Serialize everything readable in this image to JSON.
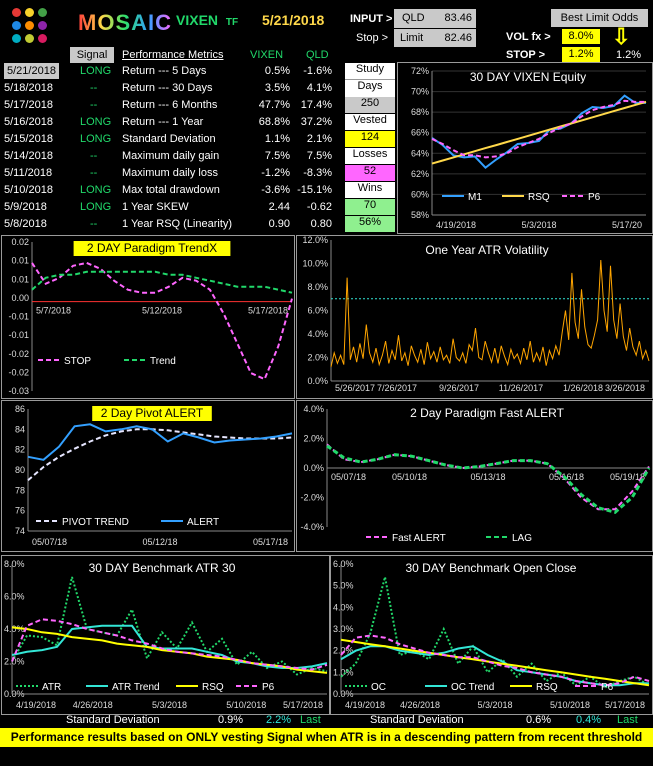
{
  "header": {
    "brand": "MOSAIC",
    "ticker": "VIXEN",
    "ticker_suffix": "TF",
    "date": "5/21/2018",
    "input_label": "INPUT >",
    "input_symbol": "QLD",
    "input_value": "83.46",
    "stop_label": "Stop >",
    "limit_label": "Limit",
    "limit_value": "82.46",
    "best_limit_odds": "Best Limit Odds",
    "vol_fx_label": "VOL fx >",
    "vol_fx_value": "8.0%",
    "stop2_label": "STOP  >",
    "stop2_value": "1.2%",
    "stop2_right": "1.2%",
    "arrow": "⇩"
  },
  "table": {
    "headers": {
      "signal": "Signal",
      "metrics": "Performance Metrics",
      "vixen": "VIXEN",
      "qld": "QLD"
    },
    "rows": [
      {
        "date": "5/21/2018",
        "signal": "LONG",
        "metric": "Return --- 5 Days",
        "vixen": "0.5%",
        "qld": "-1.6%"
      },
      {
        "date": "5/18/2018",
        "signal": "--",
        "metric": "Return --- 30 Days",
        "vixen": "3.5%",
        "qld": "4.1%"
      },
      {
        "date": "5/17/2018",
        "signal": "--",
        "metric": "Return --- 6 Months",
        "vixen": "47.7%",
        "qld": "17.4%"
      },
      {
        "date": "5/16/2018",
        "signal": "LONG",
        "metric": "Return --- 1 Year",
        "vixen": "68.8%",
        "qld": "37.2%"
      },
      {
        "date": "5/15/2018",
        "signal": "LONG",
        "metric": "Standard Deviation",
        "vixen": "1.1%",
        "qld": "2.1%"
      },
      {
        "date": "5/14/2018",
        "signal": "--",
        "metric": "Maximum daily gain",
        "vixen": "7.5%",
        "qld": "7.5%"
      },
      {
        "date": "5/11/2018",
        "signal": "--",
        "metric": "Maximum daily loss",
        "vixen": "-1.2%",
        "qld": "-8.3%"
      },
      {
        "date": "5/10/2018",
        "signal": "LONG",
        "metric": "Max total drawdown",
        "vixen": "-3.6%",
        "qld": "-15.1%"
      },
      {
        "date": "5/9/2018",
        "signal": "LONG",
        "metric": "1 Year SKEW",
        "vixen": "2.44",
        "qld": "-0.62"
      },
      {
        "date": "5/8/2018",
        "signal": "--",
        "metric": "1 Year RSQ  (Linearity)",
        "vixen": "0.90",
        "qld": "0.80"
      }
    ]
  },
  "stats": {
    "study_label": "Study",
    "days_label": "Days",
    "days_value": "250",
    "vested_label": "Vested",
    "vested_value": "124",
    "losses_label": "Losses",
    "losses_value": "52",
    "wins_label": "Wins",
    "wins_value": "70",
    "win_pct": "56%"
  },
  "footer_panels": {
    "left_label": "Standard Deviation",
    "left_v1": "0.9%",
    "left_v2": "2.2%",
    "left_last": "Last",
    "right_label": "Standard Deviation",
    "right_v1": "0.6%",
    "right_v2": "0.4%",
    "right_last": "Last"
  },
  "footer": "Performance results based on ONLY vesting Signal when ATR is in a descending pattern from recent threshold highs.",
  "colors": {
    "accent": "#ffd84a",
    "green": "#21d86a",
    "yellow": "#ffff00",
    "pink": "#ff66ff",
    "blue": "#33a0ff",
    "cyan": "#33e6d6",
    "orange": "#ffa500"
  },
  "chart_data": [
    {
      "id": "equity",
      "type": "line",
      "title": "30 DAY  VIXEN   Equity",
      "x_ticks": [
        "4/19/2018",
        "5/3/2018",
        "5/17/20"
      ],
      "ylim": [
        58,
        72
      ],
      "y_ticks": [
        "58%",
        "60%",
        "62%",
        "64%",
        "66%",
        "68%",
        "70%",
        "72%"
      ],
      "series": [
        {
          "name": "M1",
          "color": "#33a0ff",
          "values": [
            65.5,
            64.8,
            63.8,
            63.6,
            63.7,
            62.6,
            63.4,
            64.1,
            64.9,
            65.0,
            65.2,
            66.3,
            66.4,
            66.9,
            67.9,
            68.5,
            68.4,
            68.6,
            69.6,
            68.9,
            68.9
          ]
        },
        {
          "name": "RSQ",
          "color": "#ffd84a",
          "values": [
            63.0,
            63.3,
            63.6,
            63.9,
            64.2,
            64.5,
            64.8,
            65.1,
            65.4,
            65.7,
            66.0,
            66.3,
            66.6,
            66.9,
            67.2,
            67.5,
            67.8,
            68.1,
            68.4,
            68.7,
            69.0
          ]
        },
        {
          "name": "P6",
          "color": "#ff66ff",
          "values": [
            65.4,
            64.9,
            64.3,
            63.8,
            63.8,
            63.6,
            63.7,
            64.0,
            64.6,
            65.0,
            65.4,
            66.0,
            66.5,
            66.9,
            67.6,
            68.2,
            68.5,
            68.7,
            69.1,
            69.0,
            69.0
          ]
        }
      ]
    },
    {
      "id": "trendx",
      "type": "line",
      "title": "2  DAY  Paradigm  TrendX",
      "x_ticks": [
        "5/7/2018",
        "5/12/2018",
        "5/17/2018"
      ],
      "ylim": [
        -0.03,
        0.02
      ],
      "y_ticks": [
        "0.02",
        "0.01",
        "0.01",
        "0.00",
        "-0.01",
        "-0.01",
        "-0.02",
        "-0.02",
        "-0.03"
      ],
      "series": [
        {
          "name": "STOP",
          "color": "#ff66ff",
          "values": [
            0.013,
            0.006,
            0.008,
            0.012,
            0.013,
            0.011,
            0.007,
            0.004,
            0.003,
            0.003,
            0.005,
            0.008,
            0.007,
            0.004,
            -0.004,
            -0.014,
            -0.024,
            -0.026,
            -0.015,
            0.001
          ]
        },
        {
          "name": "Trend",
          "color": "#21d86a",
          "values": [
            0.004,
            0.008,
            0.009,
            0.009,
            0.01,
            0.01,
            0.01,
            0.01,
            0.01,
            0.01,
            0.009,
            0.009,
            0.008,
            0.007,
            0.006,
            0.005,
            0.005,
            0.005,
            0.004,
            0.003
          ]
        }
      ]
    },
    {
      "id": "atrvol",
      "type": "line",
      "title": "One Year  ATR Volatility",
      "x_ticks": [
        "5/26/2017",
        "7/26/2017",
        "9/26/2017",
        "11/26/2017",
        "1/26/2018",
        "3/26/2018"
      ],
      "ylim": [
        0,
        12
      ],
      "y_ticks": [
        "0.0%",
        "2.0%",
        "4.0%",
        "6.0%",
        "8.0%",
        "10.0%",
        "12.0%"
      ],
      "threshold": 7.0,
      "series": [
        {
          "name": "ATR",
          "color": "#ffa500",
          "values": [
            1.2,
            2.4,
            1.5,
            2.2,
            1.4,
            8.8,
            1.8,
            2.9,
            1.6,
            3.2,
            1.9,
            4.8,
            2.4,
            1.6,
            2.8,
            1.4,
            2.2,
            3.4,
            1.5,
            2.6,
            1.8,
            3.9,
            1.7,
            2.4,
            1.3,
            3.0,
            2.2,
            1.6,
            2.7,
            1.4,
            3.3,
            1.9,
            2.5,
            1.6,
            2.9,
            1.8,
            2.2,
            1.5,
            3.6,
            2.0,
            1.7,
            2.4,
            1.5,
            3.1,
            2.6,
            4.5,
            2.0,
            1.8,
            3.4,
            2.4,
            1.6,
            2.8,
            1.5,
            3.0,
            2.1,
            1.4,
            2.7,
            1.9,
            2.3,
            1.5,
            2.8,
            1.8,
            3.4,
            1.6,
            2.4,
            1.7,
            2.9,
            1.3,
            2.6,
            1.9,
            3.0,
            2.2,
            4.2,
            6.0,
            3.5,
            9.2,
            5.0,
            3.6,
            7.8,
            4.6,
            3.1,
            2.8,
            3.9,
            5.2,
            10.3,
            6.0,
            4.2,
            9.8,
            5.2,
            3.6,
            6.6,
            3.8,
            2.6,
            4.5,
            2.9,
            2.2,
            3.4,
            1.9,
            2.6,
            1.7
          ]
        }
      ]
    },
    {
      "id": "pivot",
      "type": "line",
      "title": "2 Day Pivot  ALERT",
      "x_ticks": [
        "05/07/18",
        "05/12/18",
        "05/17/18"
      ],
      "ylim": [
        74,
        86
      ],
      "y_ticks": [
        "74",
        "76",
        "78",
        "80",
        "82",
        "84",
        "86"
      ],
      "series": [
        {
          "name": "PIVOT  TREND",
          "color": "#e6e6ff",
          "values": [
            79.0,
            80.3,
            81.3,
            82.1,
            82.8,
            83.4,
            83.8,
            84.0,
            84.0,
            83.9,
            83.7,
            83.5,
            83.3,
            83.2,
            83.1,
            83.1,
            83.1,
            83.2
          ]
        },
        {
          "name": "ALERT",
          "color": "#33a0ff",
          "values": [
            81.3,
            81.0,
            82.3,
            84.3,
            84.5,
            83.8,
            84.0,
            84.3,
            84.0,
            82.8,
            83.6,
            83.2,
            82.7,
            82.9,
            83.0,
            83.1,
            83.3,
            83.6
          ]
        }
      ]
    },
    {
      "id": "fastalert",
      "type": "line",
      "title": "2 Day  Paradigm  Fast  ALERT",
      "x_ticks": [
        "05/07/18",
        "05/10/18",
        "05/13/18",
        "05/16/18",
        "05/19/18"
      ],
      "ylim": [
        -4,
        4
      ],
      "y_ticks": [
        "4.0%",
        "2.0%",
        "0.0%",
        "-2.0%",
        "-4.0%"
      ],
      "series": [
        {
          "name": "Fast ALERT",
          "color": "#ff66ff",
          "values": [
            1.6,
            0.6,
            0.4,
            0.6,
            0.9,
            0.8,
            0.5,
            0.2,
            0.0,
            0.1,
            0.3,
            0.5,
            0.5,
            0.3,
            -0.7,
            -2.0,
            -2.8,
            -2.8,
            -1.6,
            0.1
          ]
        },
        {
          "name": "LAG",
          "color": "#21d86a",
          "values": [
            1.5,
            0.7,
            0.4,
            0.6,
            0.9,
            0.8,
            0.5,
            0.2,
            0.0,
            0.1,
            0.3,
            0.5,
            0.5,
            0.3,
            -0.6,
            -1.8,
            -2.7,
            -3.0,
            -2.0,
            0.0
          ]
        }
      ]
    },
    {
      "id": "benchatr",
      "type": "line",
      "title": "30 DAY  Benchmark  ATR 30",
      "x_ticks": [
        "4/19/2018",
        "4/26/2018",
        "5/3/2018",
        "5/10/2018",
        "5/17/2018"
      ],
      "ylim": [
        0,
        8
      ],
      "y_ticks": [
        "0.0%",
        "2.0%",
        "4.0%",
        "6.0%",
        "8.0%"
      ],
      "series": [
        {
          "name": "ATR",
          "color": "#21d86a",
          "values": [
            2.0,
            3.6,
            3.5,
            3.0,
            7.2,
            4.0,
            3.8,
            3.6,
            5.2,
            2.2,
            3.8,
            2.8,
            4.4,
            2.6,
            3.4,
            1.8,
            2.6,
            1.6,
            2.0,
            1.2,
            1.6,
            1.4
          ]
        },
        {
          "name": "ATR Trend",
          "color": "#33e6d6",
          "values": [
            2.4,
            2.6,
            2.7,
            2.9,
            4.0,
            4.1,
            4.2,
            4.2,
            4.2,
            2.9,
            2.8,
            2.8,
            2.8,
            2.6,
            2.4,
            2.0,
            1.9,
            1.7,
            1.6,
            1.6,
            1.7,
            1.9
          ]
        },
        {
          "name": "RSQ",
          "color": "#ffff00",
          "values": [
            4.1,
            4.0,
            3.8,
            3.7,
            3.5,
            3.4,
            3.3,
            3.1,
            3.0,
            2.9,
            2.7,
            2.6,
            2.5,
            2.3,
            2.2,
            2.1,
            1.9,
            1.8,
            1.7,
            1.5,
            1.4,
            1.3
          ]
        },
        {
          "name": "P6",
          "color": "#ff66ff",
          "values": [
            2.0,
            4.2,
            4.6,
            4.5,
            4.3,
            4.0,
            3.8,
            3.6,
            3.3,
            3.1,
            2.8,
            2.6,
            2.5,
            2.4,
            2.3,
            2.1,
            1.9,
            1.8,
            1.7,
            1.6,
            1.5,
            1.8
          ]
        }
      ]
    },
    {
      "id": "benchoc",
      "type": "line",
      "title": "30 DAY  Benchmark  Open Close",
      "x_ticks": [
        "4/19/2018",
        "4/26/2018",
        "5/3/2018",
        "5/10/2018",
        "5/17/2018"
      ],
      "ylim": [
        0,
        6
      ],
      "y_ticks": [
        "0.0%",
        "1.0%",
        "2.0%",
        "3.0%",
        "4.0%",
        "5.0%",
        "6.0%"
      ],
      "series": [
        {
          "name": "OC",
          "color": "#21d86a",
          "values": [
            0.8,
            1.4,
            2.8,
            5.4,
            1.8,
            2.0,
            1.6,
            3.0,
            1.4,
            2.2,
            1.0,
            1.6,
            0.8,
            1.4,
            0.6,
            1.0,
            0.4,
            0.8,
            0.3,
            0.6,
            0.8,
            0.4
          ]
        },
        {
          "name": "OC Trend",
          "color": "#33e6d6",
          "values": [
            1.6,
            2.0,
            2.2,
            2.2,
            2.0,
            1.9,
            1.8,
            1.9,
            2.1,
            2.2,
            1.8,
            1.5,
            1.1,
            1.0,
            0.9,
            0.8,
            0.6,
            0.5,
            0.4,
            0.4,
            0.5,
            0.5
          ]
        },
        {
          "name": "RSQ",
          "color": "#ffff00",
          "values": [
            2.5,
            2.4,
            2.3,
            2.2,
            2.1,
            2.0,
            1.9,
            1.8,
            1.7,
            1.6,
            1.5,
            1.4,
            1.3,
            1.2,
            1.1,
            1.0,
            0.9,
            0.8,
            0.7,
            0.6,
            0.5,
            0.4
          ]
        },
        {
          "name": "P6",
          "color": "#ff66ff",
          "values": [
            1.8,
            2.6,
            2.7,
            2.6,
            2.3,
            2.1,
            1.9,
            1.8,
            1.7,
            1.7,
            1.5,
            1.3,
            1.2,
            1.0,
            0.9,
            0.8,
            0.6,
            0.5,
            0.4,
            0.5,
            0.8,
            0.6
          ]
        }
      ]
    }
  ]
}
